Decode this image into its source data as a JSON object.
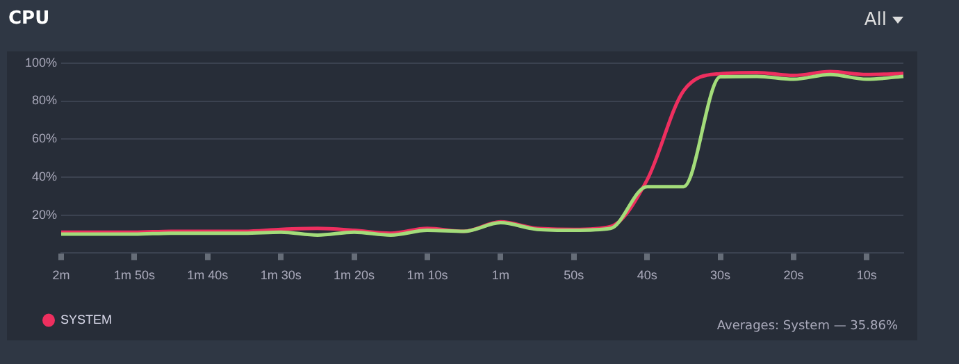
{
  "chart_data": {
    "type": "line",
    "title": "CPU",
    "categories": [
      "2m",
      null,
      "1m 50s",
      null,
      "1m 40s",
      null,
      "1m 30s",
      null,
      "1m 20s",
      null,
      "1m 10s",
      null,
      "1m",
      null,
      "50s",
      null,
      "40s",
      null,
      "30s",
      null,
      "20s",
      null,
      "10s",
      null
    ],
    "series": [
      {
        "color": "#a3dc7a",
        "values": [
          10,
          10,
          10,
          10.5,
          10.5,
          10.5,
          11,
          9.5,
          11,
          9.5,
          12,
          11.5,
          16,
          12.5,
          12,
          13,
          35,
          35,
          92.8,
          93,
          91.5,
          94,
          91.5,
          93
        ]
      },
      {
        "name": "SYSTEM",
        "color": "#ee2f5f",
        "values": [
          11,
          11,
          11,
          11.5,
          11.5,
          11.5,
          12.5,
          13,
          12,
          10.5,
          13,
          11.5,
          16.5,
          13,
          12.5,
          14,
          38.5,
          85.5,
          94.4,
          95,
          93.5,
          95.5,
          94,
          94.5
        ]
      }
    ],
    "ylim": [
      0,
      100
    ],
    "yticks": [
      {
        "value": 20,
        "label": "20%"
      },
      {
        "value": 40,
        "label": "40%"
      },
      {
        "value": 60,
        "label": "60%"
      },
      {
        "value": 80,
        "label": "80%"
      },
      {
        "value": 100,
        "label": "100%"
      }
    ],
    "grid": "y",
    "legend": "bottom left",
    "marker": "none",
    "line_style": "solid",
    "annotations": [
      "All",
      "Averages: System — 35.86%"
    ]
  }
}
